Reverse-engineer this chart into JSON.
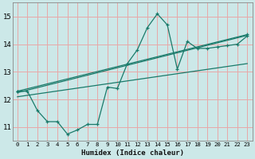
{
  "xlabel": "Humidex (Indice chaleur)",
  "bg_color": "#cce8e8",
  "grid_color": "#e8a8a8",
  "line_color": "#1a7a6a",
  "xlim": [
    -0.5,
    23.5
  ],
  "ylim": [
    10.5,
    15.5
  ],
  "yticks": [
    11,
    12,
    13,
    14,
    15
  ],
  "xticks": [
    0,
    1,
    2,
    3,
    4,
    5,
    6,
    7,
    8,
    9,
    10,
    11,
    12,
    13,
    14,
    15,
    16,
    17,
    18,
    19,
    20,
    21,
    22,
    23
  ],
  "series1_x": [
    0,
    1,
    2,
    3,
    4,
    5,
    6,
    7,
    8,
    9,
    10,
    11,
    12,
    13,
    14,
    15,
    16,
    17,
    18,
    19,
    20,
    21,
    22,
    23
  ],
  "series1_y": [
    12.3,
    12.3,
    11.6,
    11.2,
    11.2,
    10.75,
    10.9,
    11.1,
    11.1,
    12.45,
    12.4,
    13.3,
    13.8,
    14.6,
    15.1,
    14.7,
    13.1,
    14.1,
    13.85,
    13.85,
    13.9,
    13.95,
    14.0,
    14.3
  ],
  "trend1_x": [
    0,
    23
  ],
  "trend1_y": [
    12.3,
    14.35
  ],
  "trend2_x": [
    0,
    23
  ],
  "trend2_y": [
    12.1,
    13.3
  ],
  "trend3_x": [
    0,
    23
  ],
  "trend3_y": [
    12.25,
    14.32
  ]
}
